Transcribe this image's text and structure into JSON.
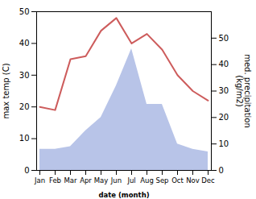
{
  "chart_data": {
    "type": "line",
    "categories": [
      "Jan",
      "Feb",
      "Mar",
      "Apr",
      "May",
      "Jun",
      "Jul",
      "Aug",
      "Sep",
      "Oct",
      "Nov",
      "Dec"
    ],
    "xlabel": "date (month)",
    "ylabel": "max temp (C)",
    "y2label": "med. precipitation\n(kg/m2)",
    "ylim": [
      0,
      50
    ],
    "yticks": [
      0,
      10,
      20,
      30,
      40,
      50
    ],
    "y2lim": [
      0,
      60
    ],
    "y2ticks": [
      0,
      10,
      20,
      30,
      40,
      50
    ],
    "grid": false,
    "series": [
      {
        "name": "med. precipitation\n(kg/m2)",
        "type": "area",
        "axis": "y2",
        "color": "#b8c4e8",
        "values": [
          8,
          8,
          9,
          15,
          20,
          32,
          46,
          25,
          25,
          10,
          8,
          7
        ]
      },
      {
        "name": "max temp (C)",
        "type": "line",
        "color": "#cd5c5c",
        "values": [
          20,
          19,
          35,
          36,
          44,
          48,
          40,
          43,
          38,
          30,
          25,
          22
        ]
      }
    ]
  }
}
